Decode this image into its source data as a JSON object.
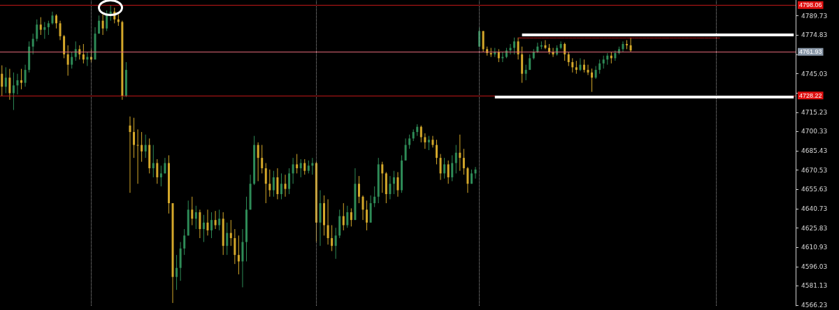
{
  "chart_data": {
    "type": "candlestick",
    "categories": [
      null,
      null,
      null,
      null,
      null,
      null,
      null,
      null,
      null,
      null,
      null,
      null,
      null,
      null,
      null,
      null,
      null,
      null,
      null,
      null,
      null,
      null,
      null,
      null,
      null,
      null,
      null,
      null,
      null,
      null,
      null,
      null,
      null,
      null,
      null,
      null,
      null,
      null,
      null,
      null,
      null,
      null,
      null,
      null,
      null,
      null,
      null,
      null,
      null,
      null,
      null,
      null,
      null,
      null,
      null,
      null,
      null,
      null,
      null,
      null,
      null,
      null,
      null,
      null,
      null,
      null,
      null,
      null,
      null,
      null,
      null,
      null,
      null,
      null,
      null,
      null,
      null,
      null,
      null,
      null,
      null,
      null,
      null,
      null,
      null,
      null,
      null,
      null,
      null,
      null,
      null,
      null,
      null,
      null,
      null,
      null,
      null,
      null,
      null,
      null,
      null,
      null,
      null,
      null,
      null,
      null,
      null,
      null,
      null,
      null,
      null,
      null,
      null,
      null,
      null,
      null,
      null,
      null,
      null,
      null,
      null,
      null,
      null,
      null,
      null,
      null,
      null,
      null,
      null,
      null,
      null,
      null,
      null,
      null,
      null,
      null,
      null,
      null,
      null,
      null,
      null,
      null,
      null,
      null,
      null,
      null,
      null,
      null,
      null,
      null,
      null,
      null,
      null,
      null,
      null,
      null,
      null,
      null,
      null,
      null,
      null,
      null,
      null,
      null,
      null,
      null,
      null,
      null,
      null,
      null,
      null,
      null,
      null,
      null,
      null,
      null,
      null,
      null,
      null,
      null,
      null,
      null,
      null,
      null,
      null,
      null,
      null,
      null,
      null,
      null,
      null,
      null,
      null,
      null,
      null,
      null,
      null,
      null,
      null,
      null,
      null,
      null,
      null,
      null,
      null
    ],
    "ohlc": [
      [
        4745,
        4751.5,
        4727.5,
        4735
      ],
      [
        4735,
        4750,
        4730,
        4742
      ],
      [
        4742,
        4748.8,
        4724.9,
        4730
      ],
      [
        4730,
        4746,
        4717,
        4736
      ],
      [
        4736,
        4745,
        4729,
        4740
      ],
      [
        4740,
        4748.8,
        4733,
        4738
      ],
      [
        4738,
        4752,
        4735,
        4748
      ],
      [
        4748,
        4770,
        4746,
        4766
      ],
      [
        4766,
        4776,
        4760,
        4772
      ],
      [
        4772,
        4787,
        4770,
        4783
      ],
      [
        4783,
        4788.7,
        4775,
        4779
      ],
      [
        4779,
        4785,
        4772,
        4781
      ],
      [
        4781,
        4786,
        4775,
        4784
      ],
      [
        4784,
        4793,
        4783,
        4790
      ],
      [
        4790,
        4791,
        4780,
        4784
      ],
      [
        4784,
        4786,
        4771,
        4774
      ],
      [
        4774,
        4775,
        4757,
        4760
      ],
      [
        4760,
        4767,
        4743.5,
        4752
      ],
      [
        4752,
        4762,
        4749,
        4758
      ],
      [
        4758,
        4770,
        4755,
        4764
      ],
      [
        4764,
        4767,
        4756,
        4760
      ],
      [
        4760,
        4768,
        4753,
        4756
      ],
      [
        4756,
        4762,
        4751,
        4758
      ],
      [
        4758,
        4764,
        4754,
        4756
      ],
      [
        4756,
        4781,
        4756,
        4776
      ],
      [
        4776,
        4790,
        4776,
        4786
      ],
      [
        4786,
        4791,
        4775,
        4780
      ],
      [
        4780,
        4794,
        4778,
        4790
      ],
      [
        4790,
        4798.06,
        4786,
        4793
      ],
      [
        4793,
        4796,
        4784,
        4787
      ],
      [
        4787,
        4791,
        4782,
        4785
      ],
      [
        4785,
        4786,
        4724.9,
        4728
      ],
      [
        4728,
        4754,
        4727,
        4748
      ],
      [
        4705,
        4712,
        4653,
        4700
      ],
      [
        4700,
        4711,
        4680,
        4690
      ],
      [
        4690,
        4702,
        4660,
        4690
      ],
      [
        4690,
        4700,
        4677,
        4685
      ],
      [
        4685,
        4698,
        4680,
        4690
      ],
      [
        4690,
        4695,
        4668,
        4672
      ],
      [
        4672,
        4690,
        4665,
        4676
      ],
      [
        4676,
        4679,
        4660,
        4665
      ],
      [
        4665,
        4674,
        4658,
        4668
      ],
      [
        4668,
        4680,
        4668,
        4676
      ],
      [
        4676,
        4682,
        4637,
        4645
      ],
      [
        4645,
        4645,
        4567.9,
        4588
      ],
      [
        4588,
        4605,
        4578,
        4595
      ],
      [
        4595,
        4615,
        4585,
        4610
      ],
      [
        4610,
        4625,
        4605,
        4620
      ],
      [
        4620,
        4647,
        4620,
        4640
      ],
      [
        4640,
        4650,
        4628,
        4633
      ],
      [
        4633,
        4643,
        4625,
        4638
      ],
      [
        4638,
        4640,
        4618,
        4625
      ],
      [
        4625,
        4636,
        4615,
        4630
      ],
      [
        4630,
        4640,
        4620,
        4624
      ],
      [
        4624,
        4638,
        4618,
        4632
      ],
      [
        4632,
        4639,
        4625,
        4628
      ],
      [
        4628,
        4640,
        4624,
        4633
      ],
      [
        4633,
        4638,
        4605,
        4612
      ],
      [
        4612,
        4630,
        4605,
        4622
      ],
      [
        4622,
        4632,
        4612,
        4618
      ],
      [
        4618,
        4625,
        4598,
        4605
      ],
      [
        4605,
        4620,
        4590,
        4600
      ],
      [
        4600,
        4625,
        4580,
        4615
      ],
      [
        4615,
        4650,
        4600,
        4640
      ],
      [
        4640,
        4667,
        4640,
        4660
      ],
      [
        4660,
        4697,
        4659,
        4690
      ],
      [
        4690,
        4692,
        4662,
        4680
      ],
      [
        4680,
        4690,
        4668,
        4672
      ],
      [
        4672,
        4676,
        4645,
        4660
      ],
      [
        4660,
        4671,
        4650,
        4655
      ],
      [
        4655,
        4670,
        4650,
        4665
      ],
      [
        4665,
        4672,
        4648,
        4652
      ],
      [
        4652,
        4668,
        4648,
        4660
      ],
      [
        4660,
        4667,
        4650,
        4656
      ],
      [
        4656,
        4672,
        4652,
        4668
      ],
      [
        4668,
        4680,
        4660,
        4675
      ],
      [
        4675,
        4683,
        4668,
        4672
      ],
      [
        4672,
        4679,
        4665,
        4676
      ],
      [
        4676,
        4679,
        4667,
        4670
      ],
      [
        4670,
        4678,
        4668,
        4674
      ],
      [
        4674,
        4680,
        4667,
        4676
      ],
      [
        4676,
        4677,
        4615,
        4630
      ],
      [
        4630,
        4655,
        4612,
        4645
      ],
      [
        4645,
        4651,
        4620,
        4628
      ],
      [
        4628,
        4648,
        4613,
        4618
      ],
      [
        4618,
        4628,
        4608,
        4612
      ],
      [
        4612,
        4626,
        4602,
        4620
      ],
      [
        4620,
        4640,
        4618,
        4635
      ],
      [
        4635,
        4645,
        4624,
        4628
      ],
      [
        4628,
        4643,
        4626,
        4638
      ],
      [
        4638,
        4641,
        4627,
        4632
      ],
      [
        4632,
        4672,
        4632,
        4660
      ],
      [
        4660,
        4666,
        4645,
        4650
      ],
      [
        4650,
        4651,
        4632,
        4640
      ],
      [
        4640,
        4647,
        4624,
        4630
      ],
      [
        4630,
        4651,
        4630,
        4645
      ],
      [
        4645,
        4658,
        4642,
        4650
      ],
      [
        4650,
        4680,
        4645,
        4675
      ],
      [
        4675,
        4677,
        4653,
        4668
      ],
      [
        4668,
        4669,
        4645,
        4652
      ],
      [
        4652,
        4666,
        4648,
        4660
      ],
      [
        4660,
        4670,
        4652,
        4665
      ],
      [
        4665,
        4669,
        4650,
        4655
      ],
      [
        4655,
        4682,
        4653,
        4678
      ],
      [
        4678,
        4695,
        4678,
        4690
      ],
      [
        4690,
        4698,
        4687,
        4695
      ],
      [
        4695,
        4702,
        4693,
        4700
      ],
      [
        4700,
        4706,
        4697,
        4704
      ],
      [
        4704,
        4705,
        4692,
        4696
      ],
      [
        4696,
        4699,
        4687,
        4692
      ],
      [
        4692,
        4697,
        4686,
        4694
      ],
      [
        4694,
        4697,
        4688,
        4690
      ],
      [
        4690,
        4694,
        4675,
        4680
      ],
      [
        4680,
        4683,
        4663,
        4668
      ],
      [
        4668,
        4680,
        4664,
        4675
      ],
      [
        4675,
        4678,
        4660,
        4665
      ],
      [
        4665,
        4682,
        4662,
        4676
      ],
      [
        4676,
        4690,
        4668,
        4684
      ],
      [
        4684,
        4698,
        4670,
        4680
      ],
      [
        4680,
        4687,
        4667,
        4672
      ],
      [
        4672,
        4673,
        4653,
        4660
      ],
      [
        4660,
        4671,
        4660,
        4668
      ],
      [
        4668,
        4673,
        4664,
        4671
      ],
      [
        4766,
        4781,
        4766,
        4778
      ],
      [
        4778,
        4778,
        4762,
        4764
      ],
      [
        4764,
        4766,
        4759,
        4761
      ],
      [
        4761,
        4765,
        4758,
        4760
      ],
      [
        4760,
        4765,
        4758,
        4762
      ],
      [
        4762,
        4764,
        4754,
        4757
      ],
      [
        4757,
        4762,
        4754,
        4758
      ],
      [
        4758,
        4765,
        4757,
        4763
      ],
      [
        4763,
        4768,
        4760,
        4765
      ],
      [
        4765,
        4773,
        4760,
        4770
      ],
      [
        4770,
        4773,
        4756,
        4760
      ],
      [
        4760,
        4766,
        4738,
        4745
      ],
      [
        4745,
        4752,
        4740,
        4748
      ],
      [
        4748,
        4760,
        4748,
        4757
      ],
      [
        4757,
        4764,
        4756,
        4762
      ],
      [
        4762,
        4769,
        4761,
        4766
      ],
      [
        4766,
        4770,
        4764,
        4767
      ],
      [
        4767,
        4771,
        4764,
        4765
      ],
      [
        4765,
        4768,
        4760,
        4762
      ],
      [
        4762,
        4765,
        4758,
        4760
      ],
      [
        4760,
        4767,
        4759,
        4765
      ],
      [
        4765,
        4770,
        4764,
        4768
      ],
      [
        4768,
        4769,
        4755,
        4760
      ],
      [
        4760,
        4762,
        4751,
        4754
      ],
      [
        4754,
        4757,
        4746,
        4750
      ],
      [
        4750,
        4755,
        4745,
        4748
      ],
      [
        4748,
        4757,
        4747,
        4752
      ],
      [
        4752,
        4756,
        4746,
        4748
      ],
      [
        4748,
        4752,
        4744,
        4746
      ],
      [
        4746,
        4749,
        4731,
        4742
      ],
      [
        4742,
        4751,
        4741,
        4748
      ],
      [
        4748,
        4756,
        4745,
        4753
      ],
      [
        4753,
        4759,
        4749,
        4756
      ],
      [
        4756,
        4761,
        4752,
        4759
      ],
      [
        4759,
        4762,
        4753,
        4757
      ],
      [
        4757,
        4763,
        4755,
        4761
      ],
      [
        4761,
        4766,
        4760,
        4764
      ],
      [
        4764,
        4770,
        4762,
        4768
      ],
      [
        4768,
        4771,
        4764,
        4767
      ],
      [
        4767,
        4773,
        4761.93,
        4763
      ],
      null,
      null,
      null,
      null,
      null,
      null,
      null,
      null,
      null,
      null,
      null,
      null,
      null,
      null,
      null,
      null,
      null,
      null,
      null,
      null,
      null,
      null,
      null,
      null,
      null,
      null,
      null,
      null,
      null,
      null,
      null,
      null,
      null,
      null,
      null,
      null,
      null,
      null,
      null,
      null,
      null,
      null
    ],
    "colors": [
      "#d4a82a",
      "#2e8b57",
      "#d4a82a",
      "#2e8b57",
      "#2e8b57",
      "#d4a82a",
      "#2e8b57",
      "#2e8b57",
      "#2e8b57",
      "#2e8b57",
      "#d4a82a",
      "#2e8b57",
      "#2e8b57",
      "#2e8b57",
      "#d4a82a",
      "#d4a82a",
      "#d4a82a",
      "#d4a82a",
      "#2e8b57",
      "#2e8b57",
      "#d4a82a",
      "#d4a82a",
      "#2e8b57",
      "#d4a82a",
      "#2e8b57",
      "#2e8b57",
      "#d4a82a",
      "#2e8b57",
      "#2e8b57",
      "#d4a82a",
      "#d4a82a",
      "#d4a82a",
      "#2e8b57",
      "#d4a82a",
      "#d4a82a",
      "#d4a82a",
      "#d4a82a",
      "#2e8b57",
      "#d4a82a",
      "#2e8b57",
      "#d4a82a",
      "#2e8b57",
      "#2e8b57",
      "#d4a82a",
      "#d4a82a",
      "#2e8b57",
      "#2e8b57",
      "#2e8b57",
      "#2e8b57",
      "#d4a82a",
      "#2e8b57",
      "#d4a82a",
      "#2e8b57",
      "#d4a82a",
      "#2e8b57",
      "#d4a82a",
      "#2e8b57",
      "#d4a82a",
      "#2e8b57",
      "#d4a82a",
      "#d4a82a",
      "#d4a82a",
      "#2e8b57",
      "#2e8b57",
      "#2e8b57",
      "#2e8b57",
      "#d4a82a",
      "#d4a82a",
      "#d4a82a",
      "#d4a82a",
      "#2e8b57",
      "#d4a82a",
      "#2e8b57",
      "#d4a82a",
      "#2e8b57",
      "#2e8b57",
      "#d4a82a",
      "#2e8b57",
      "#d4a82a",
      "#2e8b57",
      "#2e8b57",
      "#d4a82a",
      "#2e8b57",
      "#d4a82a",
      "#d4a82a",
      "#d4a82a",
      "#2e8b57",
      "#2e8b57",
      "#d4a82a",
      "#2e8b57",
      "#d4a82a",
      "#2e8b57",
      "#d4a82a",
      "#d4a82a",
      "#d4a82a",
      "#2e8b57",
      "#2e8b57",
      "#2e8b57",
      "#d4a82a",
      "#d4a82a",
      "#2e8b57",
      "#2e8b57",
      "#d4a82a",
      "#2e8b57",
      "#2e8b57",
      "#2e8b57",
      "#2e8b57",
      "#2e8b57",
      "#d4a82a",
      "#d4a82a",
      "#2e8b57",
      "#d4a82a",
      "#d4a82a",
      "#d4a82a",
      "#2e8b57",
      "#d4a82a",
      "#2e8b57",
      "#2e8b57",
      "#d4a82a",
      "#d4a82a",
      "#d4a82a",
      "#2e8b57",
      "#2e8b57",
      "#2e8b57",
      "#d4a82a",
      "#d4a82a",
      "#d4a82a",
      "#2e8b57",
      "#d4a82a",
      "#2e8b57",
      "#2e8b57",
      "#2e8b57",
      "#2e8b57",
      "#d4a82a",
      "#d4a82a",
      "#2e8b57",
      "#2e8b57",
      "#2e8b57",
      "#2e8b57",
      "#2e8b57",
      "#d4a82a",
      "#d4a82a",
      "#d4a82a",
      "#2e8b57",
      "#2e8b57",
      "#d4a82a",
      "#d4a82a",
      "#d4a82a",
      "#d4a82a",
      "#2e8b57",
      "#d4a82a",
      "#d4a82a",
      "#d4a82a",
      "#2e8b57",
      "#2e8b57",
      "#2e8b57",
      "#2e8b57",
      "#d4a82a",
      "#2e8b57",
      "#2e8b57",
      "#2e8b57",
      "#d4a82a",
      "#d4a82a",
      null,
      null,
      null,
      null,
      null,
      null,
      null,
      null,
      null,
      null,
      null,
      null,
      null,
      null,
      null,
      null,
      null,
      null,
      null,
      null,
      null,
      null,
      null,
      null,
      null,
      null,
      null,
      null,
      null,
      null,
      null,
      null,
      null,
      null,
      null,
      null,
      null,
      null,
      null,
      null,
      null,
      null
    ],
    "series": [
      {
        "type": "line",
        "color": "#ffffff",
        "values": [
          null,
          null,
          null,
          null,
          null,
          null,
          null,
          null,
          null,
          null,
          null,
          null,
          null,
          null,
          null,
          null,
          null,
          null,
          null,
          null,
          null,
          null,
          null,
          null,
          null,
          null,
          null,
          null,
          null,
          null,
          null,
          null,
          null,
          null,
          null,
          null,
          null,
          null,
          null,
          null,
          null,
          null,
          null,
          null,
          null,
          null,
          null,
          null,
          null,
          null,
          null,
          null,
          null,
          null,
          null,
          null,
          null,
          null,
          null,
          null,
          null,
          null,
          null,
          null,
          null,
          null,
          null,
          null,
          null,
          null,
          null,
          null,
          null,
          null,
          null,
          null,
          null,
          null,
          null,
          null,
          null,
          null,
          null,
          null,
          null,
          null,
          null,
          null,
          null,
          null,
          null,
          null,
          null,
          null,
          null,
          null,
          null,
          null,
          null,
          null,
          null,
          null,
          null,
          null,
          null,
          null,
          null,
          null,
          null,
          null,
          null,
          null,
          null,
          null,
          null,
          null,
          null,
          null,
          null,
          null,
          null,
          null,
          null,
          null,
          null,
          null,
          null,
          null,
          null,
          null,
          null,
          null,
          null,
          null,
          4775,
          4775,
          4775,
          4775,
          4775,
          4775,
          4775,
          4775,
          4775,
          4775,
          4775,
          4775,
          4775,
          4775,
          4775,
          4775,
          4775,
          4775,
          4775,
          4775,
          4775,
          4775,
          4775,
          4775,
          4775,
          4775,
          4775,
          4775,
          4775,
          4775,
          4775,
          4775,
          4775,
          4775,
          4775,
          4775,
          4775,
          4775,
          4775,
          4775,
          4775,
          4775,
          4775,
          4775,
          4775,
          4775,
          4775,
          4775,
          4775,
          4775,
          4775,
          4775,
          4775,
          4775,
          4775,
          4775,
          4775,
          4775,
          4775,
          4775,
          4775,
          4775,
          4775,
          4775,
          4775,
          4775,
          4775,
          4775,
          4775,
          4775,
          4775
        ]
      },
      {
        "type": "line",
        "color": "#ffffff",
        "values": [
          null,
          null,
          null,
          null,
          null,
          null,
          null,
          null,
          null,
          null,
          null,
          null,
          null,
          null,
          null,
          null,
          null,
          null,
          null,
          null,
          null,
          null,
          null,
          null,
          null,
          null,
          null,
          null,
          null,
          null,
          null,
          null,
          null,
          null,
          null,
          null,
          null,
          null,
          null,
          null,
          null,
          null,
          null,
          null,
          null,
          null,
          null,
          null,
          null,
          null,
          null,
          null,
          null,
          null,
          null,
          null,
          null,
          null,
          null,
          null,
          null,
          null,
          null,
          null,
          null,
          null,
          null,
          null,
          null,
          null,
          null,
          null,
          null,
          null,
          null,
          null,
          null,
          null,
          null,
          null,
          null,
          null,
          null,
          null,
          null,
          null,
          null,
          null,
          null,
          null,
          null,
          null,
          null,
          null,
          null,
          null,
          null,
          null,
          null,
          null,
          null,
          null,
          null,
          null,
          null,
          null,
          null,
          null,
          null,
          null,
          null,
          null,
          null,
          null,
          null,
          null,
          null,
          null,
          null,
          null,
          null,
          null,
          null,
          null,
          null,
          null,
          null,
          4727,
          4727,
          4727,
          4727,
          4727,
          4727,
          4727,
          4727,
          4727,
          4727,
          4727,
          4727,
          4727,
          4727,
          4727,
          4727,
          4727,
          4727,
          4727,
          4727,
          4727,
          4727,
          4727,
          4727,
          4727,
          4727,
          4727,
          4727,
          4727,
          4727,
          4727,
          4727,
          4727,
          4727,
          4727,
          4727,
          4727,
          4727,
          4727,
          4727,
          4727,
          4727,
          4727,
          4727,
          4727,
          4727,
          4727,
          4727,
          4727,
          4727,
          4727,
          4727,
          4727,
          4727,
          4727,
          4727,
          4727,
          4727,
          4727,
          4727,
          4727,
          4727,
          4727,
          4727,
          4727,
          4727,
          4727,
          4727,
          4727,
          4727,
          4727,
          4727,
          4727,
          4727,
          4727,
          4727,
          4727,
          4727
        ]
      },
      {
        "type": "line",
        "color": "#c02020",
        "values": [
          null,
          null,
          null,
          null,
          null,
          null,
          null,
          null,
          null,
          null,
          null,
          null,
          null,
          null,
          null,
          null,
          null,
          null,
          null,
          null,
          null,
          null,
          null,
          null,
          null,
          null,
          null,
          null,
          null,
          null,
          null,
          null,
          null,
          null,
          null,
          null,
          null,
          null,
          null,
          null,
          null,
          null,
          null,
          null,
          null,
          null,
          null,
          null,
          null,
          null,
          null,
          null,
          null,
          null,
          null,
          null,
          null,
          null,
          null,
          null,
          null,
          null,
          null,
          null,
          null,
          null,
          null,
          null,
          null,
          null,
          null,
          null,
          null,
          null,
          null,
          null,
          null,
          null,
          null,
          null,
          null,
          null,
          null,
          null,
          null,
          null,
          null,
          null,
          null,
          null,
          null,
          null,
          null,
          null,
          null,
          null,
          null,
          null,
          null,
          null,
          null,
          null,
          null,
          null,
          null,
          null,
          null,
          null,
          null,
          null,
          null,
          null,
          null,
          null,
          null,
          null,
          null,
          null,
          null,
          null,
          null,
          null,
          null,
          null,
          null,
          null,
          null,
          null,
          null,
          null,
          null,
          null,
          null,
          4772.7,
          4772.7,
          4772.7,
          4772.7,
          4772.7,
          4772.7,
          4772.7,
          4772.7,
          4772.7,
          4772.7,
          4772.7,
          4772.7,
          4772.7,
          4772.7,
          4772.7,
          4772.7,
          4772.7,
          4772.7,
          4772.7,
          4772.7,
          4772.7,
          4772.7,
          4772.7,
          4772.7,
          4772.7,
          4772.7,
          4772.7,
          4772.7,
          4772.7,
          4772.7,
          4772.7,
          4772.7,
          4772.7,
          4772.7,
          4772.7,
          4772.7,
          4772.7,
          4772.7,
          4772.7,
          4772.7,
          4772.7,
          4772.7,
          4772.7,
          4772.7,
          4772.7,
          4772.7,
          4772.7,
          4772.7,
          4772.7,
          4772.7,
          4772.7,
          4772.7,
          4772.7,
          null,
          null,
          null,
          null,
          null,
          null,
          null,
          null,
          null,
          null,
          null,
          null,
          null,
          null,
          null,
          null,
          null,
          null,
          null
        ]
      }
    ],
    "ylim": [
      4565.7,
      4802
    ],
    "yticks": [
      4566.23,
      4581.13,
      4596.03,
      4610.93,
      4625.83,
      4640.73,
      4655.63,
      4670.53,
      4685.43,
      4700.33,
      4715.23,
      {
        "value": 4730.13,
        "label": null
      },
      4745.03,
      {
        "value": 4759.93,
        "label": null
      },
      4774.83,
      4789.73
    ],
    "ref_lines": [
      {
        "axis": "y",
        "value": 4798.06,
        "label": "4798.06",
        "color": "#c01818"
      },
      {
        "axis": "y",
        "value": 4761.93,
        "label": "4761.93",
        "color": "#e06878"
      },
      {
        "axis": "y",
        "value": 4728.22,
        "label": "4728.22",
        "color": "#c01818"
      }
    ],
    "grid": false
  }
}
